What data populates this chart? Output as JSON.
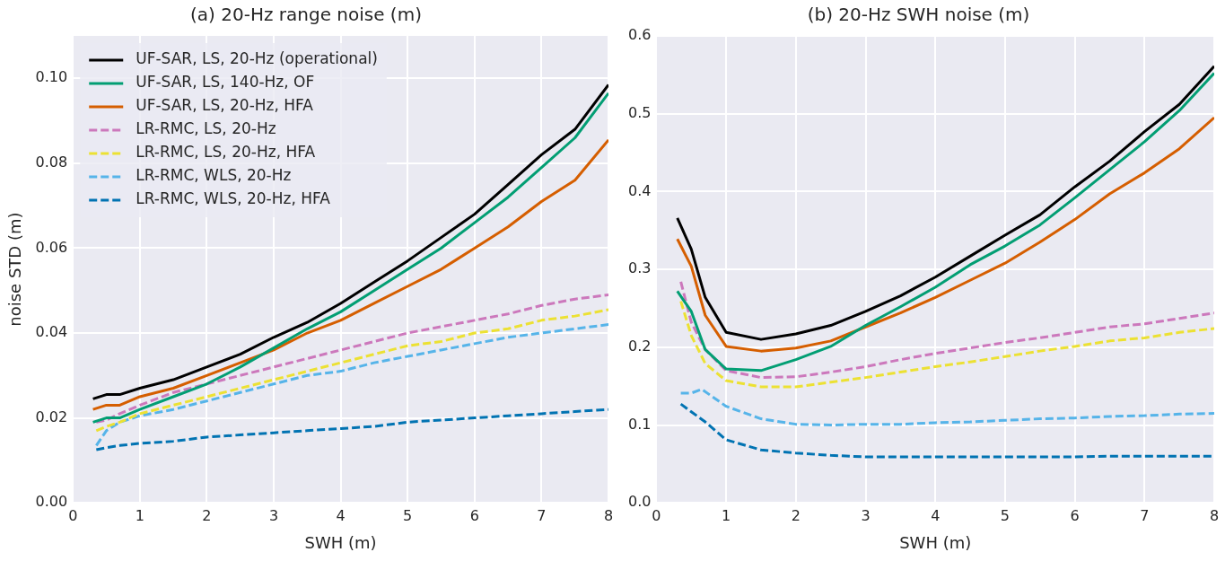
{
  "chart_data": [
    {
      "type": "line",
      "title": "(a) 20-Hz range noise (m)",
      "xlabel": "SWH (m)",
      "ylabel": "noise STD (m)",
      "x": [
        0.3,
        0.5,
        0.7,
        1,
        1.5,
        2,
        2.5,
        3,
        3.5,
        4,
        4.5,
        5,
        5.5,
        6,
        6.5,
        7,
        7.5,
        8
      ],
      "xlim": [
        0,
        8
      ],
      "xticks": [
        0,
        1,
        2,
        3,
        4,
        5,
        6,
        7,
        8
      ],
      "ylim": [
        0,
        0.11
      ],
      "yticks": [
        {
          "value": 0,
          "label": "0.00"
        },
        {
          "value": 0.02,
          "label": "0.02"
        },
        {
          "value": 0.04,
          "label": "0.04"
        },
        {
          "value": 0.06,
          "label": "0.06"
        },
        {
          "value": 0.08,
          "label": "0.08"
        },
        {
          "value": 0.1,
          "label": "0.10"
        }
      ],
      "grid": true,
      "legend": "top left",
      "marker": "none",
      "series": [
        {
          "name": "UF-SAR, LS, 20-Hz (operational)",
          "color": "#000000",
          "line_style": "solid",
          "values": [
            0.0245,
            0.0255,
            0.0255,
            0.027,
            0.029,
            0.032,
            0.035,
            0.039,
            0.0425,
            0.047,
            0.052,
            0.057,
            0.0625,
            0.068,
            0.075,
            0.082,
            0.088,
            0.0985
          ]
        },
        {
          "name": "UF-SAR, LS, 140-Hz, OF",
          "color": "#029e73",
          "line_style": "solid",
          "values": [
            0.019,
            0.02,
            0.02,
            0.022,
            0.025,
            0.028,
            0.032,
            0.0365,
            0.041,
            0.045,
            0.05,
            0.055,
            0.06,
            0.066,
            0.072,
            0.079,
            0.086,
            0.0965
          ]
        },
        {
          "name": "UF-SAR, LS, 20-Hz, HFA",
          "color": "#d55e00",
          "line_style": "solid",
          "values": [
            0.022,
            0.023,
            0.023,
            0.025,
            0.027,
            0.03,
            0.033,
            0.036,
            0.04,
            0.043,
            0.047,
            0.051,
            0.055,
            0.06,
            0.065,
            0.071,
            0.076,
            0.0855
          ]
        },
        {
          "name": "LR-RMC, LS, 20-Hz",
          "color": "#cc78bc",
          "line_style": "dashed",
          "x": [
            0.35,
            0.5,
            0.7,
            1,
            1.5,
            2,
            2.5,
            3,
            3.5,
            4,
            4.5,
            5,
            5.5,
            6,
            6.5,
            7,
            7.5,
            8
          ],
          "values": [
            0.019,
            0.0195,
            0.021,
            0.023,
            0.026,
            0.028,
            0.03,
            0.032,
            0.034,
            0.036,
            0.038,
            0.04,
            0.0415,
            0.043,
            0.0445,
            0.0465,
            0.048,
            0.049
          ]
        },
        {
          "name": "LR-RMC, LS, 20-Hz, HFA",
          "color": "#ece133",
          "line_style": "dashed",
          "x": [
            0.35,
            0.5,
            0.7,
            1,
            1.5,
            2,
            2.5,
            3,
            3.5,
            4,
            4.5,
            5,
            5.5,
            6,
            6.5,
            7,
            7.5,
            8
          ],
          "values": [
            0.017,
            0.018,
            0.019,
            0.021,
            0.023,
            0.025,
            0.027,
            0.029,
            0.031,
            0.033,
            0.035,
            0.037,
            0.038,
            0.04,
            0.041,
            0.043,
            0.044,
            0.0455
          ]
        },
        {
          "name": "LR-RMC, WLS, 20-Hz",
          "color": "#56b4e9",
          "line_style": "dashed",
          "x": [
            0.35,
            0.5,
            0.7,
            1,
            1.5,
            2,
            2.5,
            3,
            3.5,
            4,
            4.5,
            5,
            5.5,
            6,
            6.5,
            7,
            7.5,
            8
          ],
          "values": [
            0.0135,
            0.017,
            0.019,
            0.0205,
            0.022,
            0.024,
            0.026,
            0.028,
            0.03,
            0.031,
            0.033,
            0.0345,
            0.036,
            0.0375,
            0.039,
            0.04,
            0.041,
            0.042
          ]
        },
        {
          "name": "LR-RMC, WLS, 20-Hz, HFA",
          "color": "#0173b2",
          "line_style": "dashed",
          "x": [
            0.35,
            0.5,
            0.7,
            1,
            1.5,
            2,
            2.5,
            3,
            3.5,
            4,
            4.5,
            5,
            5.5,
            6,
            6.5,
            7,
            7.5,
            8
          ],
          "values": [
            0.0125,
            0.013,
            0.0135,
            0.014,
            0.0145,
            0.0155,
            0.016,
            0.0165,
            0.017,
            0.0175,
            0.018,
            0.019,
            0.0195,
            0.02,
            0.0205,
            0.021,
            0.0215,
            0.022
          ]
        }
      ]
    },
    {
      "type": "line",
      "title": "(b) 20-Hz SWH noise (m)",
      "xlabel": "SWH (m)",
      "x": [
        0.3,
        0.5,
        0.7,
        1,
        1.5,
        2,
        2.5,
        3,
        3.5,
        4,
        4.5,
        5,
        5.5,
        6,
        6.5,
        7,
        7.5,
        8
      ],
      "xlim": [
        0,
        8
      ],
      "xticks": [
        0,
        1,
        2,
        3,
        4,
        5,
        6,
        7,
        8
      ],
      "ylim": [
        0,
        0.6
      ],
      "yticks": [
        {
          "value": 0,
          "label": "0.0"
        },
        {
          "value": 0.1,
          "label": "0.1"
        },
        {
          "value": 0.2,
          "label": "0.2"
        },
        {
          "value": 0.3,
          "label": "0.3"
        },
        {
          "value": 0.4,
          "label": "0.4"
        },
        {
          "value": 0.5,
          "label": "0.5"
        },
        {
          "value": 0.6,
          "label": "0.6"
        }
      ],
      "grid": true,
      "marker": "none",
      "series": [
        {
          "color": "#000000",
          "line_style": "solid",
          "values": [
            0.366,
            0.326,
            0.264,
            0.219,
            0.21,
            0.217,
            0.228,
            0.246,
            0.266,
            0.29,
            0.317,
            0.344,
            0.37,
            0.406,
            0.439,
            0.477,
            0.512,
            0.561
          ]
        },
        {
          "color": "#029e73",
          "line_style": "solid",
          "values": [
            0.272,
            0.246,
            0.197,
            0.172,
            0.17,
            0.184,
            0.201,
            0.228,
            0.252,
            0.277,
            0.306,
            0.33,
            0.357,
            0.392,
            0.428,
            0.464,
            0.504,
            0.552
          ]
        },
        {
          "color": "#d55e00",
          "line_style": "solid",
          "values": [
            0.339,
            0.304,
            0.241,
            0.201,
            0.195,
            0.199,
            0.208,
            0.226,
            0.244,
            0.264,
            0.286,
            0.308,
            0.335,
            0.364,
            0.397,
            0.424,
            0.455,
            0.495
          ]
        },
        {
          "color": "#cc78bc",
          "line_style": "dashed",
          "x": [
            0.35,
            0.5,
            0.7,
            1,
            1.5,
            2,
            2.5,
            3,
            3.5,
            4,
            4.5,
            5,
            5.5,
            6,
            6.5,
            7,
            7.5,
            8
          ],
          "values": [
            0.284,
            0.232,
            0.197,
            0.17,
            0.161,
            0.162,
            0.168,
            0.175,
            0.184,
            0.192,
            0.199,
            0.206,
            0.212,
            0.219,
            0.226,
            0.23,
            0.237,
            0.244
          ]
        },
        {
          "color": "#ece133",
          "line_style": "dashed",
          "x": [
            0.35,
            0.5,
            0.7,
            1,
            1.5,
            2,
            2.5,
            3,
            3.5,
            4,
            4.5,
            5,
            5.5,
            6,
            6.5,
            7,
            7.5,
            8
          ],
          "values": [
            0.259,
            0.215,
            0.179,
            0.157,
            0.149,
            0.149,
            0.155,
            0.161,
            0.168,
            0.175,
            0.181,
            0.188,
            0.195,
            0.201,
            0.208,
            0.212,
            0.219,
            0.224
          ]
        },
        {
          "color": "#56b4e9",
          "line_style": "dashed",
          "x": [
            0.35,
            0.5,
            0.65,
            1,
            1.5,
            2,
            2.5,
            3,
            3.5,
            4,
            4.5,
            5,
            5.5,
            6,
            6.5,
            7,
            7.5,
            8
          ],
          "values": [
            0.141,
            0.141,
            0.146,
            0.124,
            0.108,
            0.101,
            0.1,
            0.101,
            0.101,
            0.103,
            0.104,
            0.106,
            0.108,
            0.109,
            0.111,
            0.112,
            0.114,
            0.115
          ]
        },
        {
          "color": "#0173b2",
          "line_style": "dashed",
          "x": [
            0.35,
            0.5,
            0.7,
            1,
            1.5,
            2,
            2.5,
            3,
            3.5,
            4,
            4.5,
            5,
            5.5,
            6,
            6.5,
            7,
            7.5,
            8
          ],
          "values": [
            0.127,
            0.117,
            0.104,
            0.081,
            0.068,
            0.064,
            0.061,
            0.059,
            0.059,
            0.059,
            0.059,
            0.059,
            0.059,
            0.059,
            0.06,
            0.06,
            0.06,
            0.06
          ]
        }
      ]
    }
  ]
}
